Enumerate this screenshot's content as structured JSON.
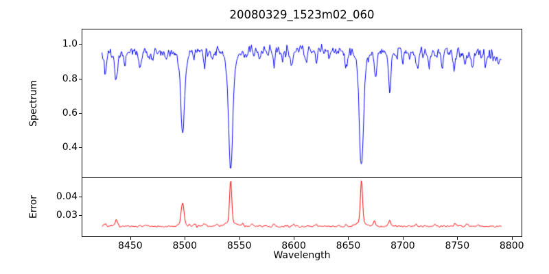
{
  "chart_data": {
    "type": "line",
    "title": "20080329_1523m02_060",
    "xlabel": "Wavelength",
    "axis_color": "#000000",
    "background": "#ffffff",
    "xlim": [
      8406,
      8809
    ],
    "x_data_range": [
      8424,
      8791
    ],
    "xticks": [
      {
        "v": 8450,
        "label": "8450"
      },
      {
        "v": 8500,
        "label": "8500"
      },
      {
        "v": 8550,
        "label": "8550"
      },
      {
        "v": 8600,
        "label": "8600"
      },
      {
        "v": 8650,
        "label": "8650"
      },
      {
        "v": 8700,
        "label": "8700"
      },
      {
        "v": 8750,
        "label": "8750"
      },
      {
        "v": 8800,
        "label": "8800"
      }
    ],
    "sampling_step": 0.65,
    "seed": 20080329,
    "grid": false,
    "legend": false,
    "panels": [
      {
        "name": "spectrum",
        "ylabel": "Spectrum",
        "color": "#0000ff",
        "ylim": [
          0.225,
          1.085
        ],
        "yticks": [
          {
            "v": 1.0,
            "label": "1.0"
          },
          {
            "v": 0.8,
            "label": "0.8"
          },
          {
            "v": 0.6,
            "label": "0.6"
          },
          {
            "v": 0.4,
            "label": "0.4"
          }
        ],
        "noise_sigma": 0.019,
        "continuum": [
          [
            8424,
            0.945
          ],
          [
            8450,
            0.95
          ],
          [
            8480,
            0.96
          ],
          [
            8510,
            0.965
          ],
          [
            8540,
            0.97
          ],
          [
            8575,
            0.965
          ],
          [
            8620,
            0.965
          ],
          [
            8655,
            0.96
          ],
          [
            8690,
            0.95
          ],
          [
            8720,
            0.945
          ],
          [
            8750,
            0.95
          ],
          [
            8775,
            0.94
          ],
          [
            8791,
            0.93
          ]
        ],
        "absorption_lines": [
          {
            "center": 8427.0,
            "depth": 0.11,
            "sigma": 1.0
          },
          {
            "center": 8437.0,
            "depth": 0.165,
            "sigma": 1.3
          },
          {
            "center": 8445.0,
            "depth": 0.06,
            "sigma": 0.9
          },
          {
            "center": 8459.0,
            "depth": 0.09,
            "sigma": 1.2
          },
          {
            "center": 8470.0,
            "depth": 0.06,
            "sigma": 0.9
          },
          {
            "center": 8482.0,
            "depth": 0.06,
            "sigma": 0.9
          },
          {
            "center": 8498.0,
            "depth": 0.43,
            "sigma": 1.7,
            "wing_depth": 0.06,
            "wing_sigma": 4.5
          },
          {
            "center": 8508.0,
            "depth": 0.05,
            "sigma": 0.9
          },
          {
            "center": 8518.0,
            "depth": 0.1,
            "sigma": 1.1
          },
          {
            "center": 8526.0,
            "depth": 0.05,
            "sigma": 0.9
          },
          {
            "center": 8542.1,
            "depth": 0.64,
            "sigma": 1.9,
            "wing_depth": 0.07,
            "wing_sigma": 6.0
          },
          {
            "center": 8557.0,
            "depth": 0.05,
            "sigma": 0.9
          },
          {
            "center": 8568.0,
            "depth": 0.05,
            "sigma": 0.9
          },
          {
            "center": 8582.0,
            "depth": 0.08,
            "sigma": 1.1
          },
          {
            "center": 8590.0,
            "depth": 0.04,
            "sigma": 0.8
          },
          {
            "center": 8598.0,
            "depth": 0.09,
            "sigma": 1.2
          },
          {
            "center": 8611.0,
            "depth": 0.06,
            "sigma": 0.9
          },
          {
            "center": 8621.0,
            "depth": 0.08,
            "sigma": 1.0
          },
          {
            "center": 8633.0,
            "depth": 0.05,
            "sigma": 0.9
          },
          {
            "center": 8648.0,
            "depth": 0.09,
            "sigma": 1.2
          },
          {
            "center": 8662.1,
            "depth": 0.62,
            "sigma": 1.8,
            "wing_depth": 0.07,
            "wing_sigma": 5.5
          },
          {
            "center": 8675.0,
            "depth": 0.14,
            "sigma": 1.1
          },
          {
            "center": 8688.0,
            "depth": 0.24,
            "sigma": 1.1
          },
          {
            "center": 8700.0,
            "depth": 0.05,
            "sigma": 0.9
          },
          {
            "center": 8713.0,
            "depth": 0.1,
            "sigma": 1.2
          },
          {
            "center": 8724.0,
            "depth": 0.05,
            "sigma": 0.9
          },
          {
            "center": 8736.0,
            "depth": 0.08,
            "sigma": 1.0
          },
          {
            "center": 8747.0,
            "depth": 0.09,
            "sigma": 1.1
          },
          {
            "center": 8757.0,
            "depth": 0.06,
            "sigma": 0.9
          },
          {
            "center": 8764.0,
            "depth": 0.08,
            "sigma": 1.0
          },
          {
            "center": 8776.0,
            "depth": 0.06,
            "sigma": 0.9
          },
          {
            "center": 8788.0,
            "depth": 0.05,
            "sigma": 0.9
          }
        ]
      },
      {
        "name": "error",
        "ylabel": "Error",
        "color": "#ff0000",
        "ylim": [
          0.0193,
          0.0496
        ],
        "yticks": [
          {
            "v": 0.04,
            "label": "0.04"
          },
          {
            "v": 0.03,
            "label": "0.03"
          }
        ],
        "baseline": 0.0242,
        "noise_sigma": 0.0003,
        "peaks": [
          {
            "center": 8427.0,
            "amp": 0.0012,
            "sigma": 1.0
          },
          {
            "center": 8437.0,
            "amp": 0.003,
            "sigma": 1.3
          },
          {
            "center": 8465.0,
            "amp": 0.0008,
            "sigma": 1.0
          },
          {
            "center": 8498.0,
            "amp": 0.011,
            "sigma": 1.3
          },
          {
            "center": 8498.0,
            "amp": 0.0015,
            "sigma": 4.0
          },
          {
            "center": 8509.0,
            "amp": 0.0012,
            "sigma": 1.0
          },
          {
            "center": 8518.0,
            "amp": 0.0015,
            "sigma": 1.0
          },
          {
            "center": 8529.0,
            "amp": 0.0009,
            "sigma": 1.0
          },
          {
            "center": 8542.1,
            "amp": 0.0218,
            "sigma": 1.0
          },
          {
            "center": 8542.1,
            "amp": 0.0024,
            "sigma": 4.5
          },
          {
            "center": 8553.0,
            "amp": 0.0015,
            "sigma": 1.0
          },
          {
            "center": 8562.0,
            "amp": 0.0017,
            "sigma": 1.0
          },
          {
            "center": 8582.0,
            "amp": 0.0009,
            "sigma": 1.0
          },
          {
            "center": 8600.0,
            "amp": 0.0009,
            "sigma": 1.0
          },
          {
            "center": 8620.0,
            "amp": 0.0008,
            "sigma": 1.0
          },
          {
            "center": 8648.0,
            "amp": 0.0009,
            "sigma": 1.0
          },
          {
            "center": 8662.1,
            "amp": 0.0222,
            "sigma": 0.95
          },
          {
            "center": 8662.1,
            "amp": 0.0024,
            "sigma": 4.5
          },
          {
            "center": 8674.0,
            "amp": 0.0028,
            "sigma": 1.1
          },
          {
            "center": 8688.0,
            "amp": 0.0028,
            "sigma": 1.1
          },
          {
            "center": 8712.0,
            "amp": 0.0012,
            "sigma": 1.0
          },
          {
            "center": 8729.0,
            "amp": 0.0009,
            "sigma": 1.0
          },
          {
            "center": 8748.0,
            "amp": 0.0015,
            "sigma": 1.0
          },
          {
            "center": 8759.0,
            "amp": 0.0012,
            "sigma": 1.0
          },
          {
            "center": 8770.0,
            "amp": 0.0009,
            "sigma": 1.0
          }
        ]
      }
    ]
  }
}
